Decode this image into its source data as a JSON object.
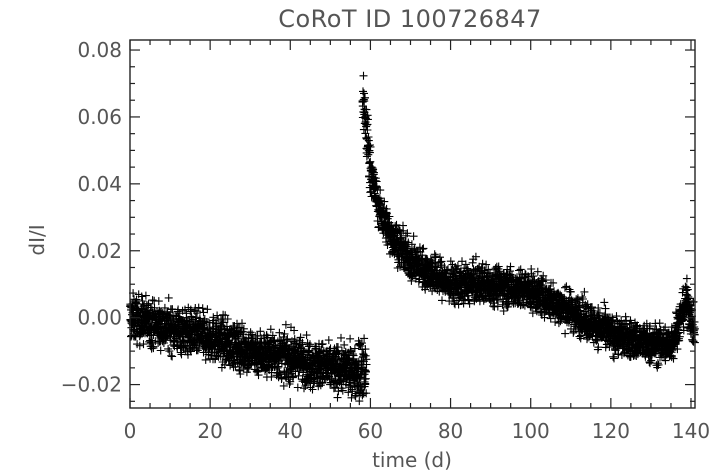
{
  "chart_data": {
    "type": "scatter",
    "title": "CoRoT ID 100726847",
    "xlabel": "time (d)",
    "ylabel": "dI/I",
    "xlim": [
      0,
      141
    ],
    "ylim": [
      -0.027,
      0.083
    ],
    "xticks": [
      0,
      20,
      40,
      60,
      80,
      100,
      120,
      140
    ],
    "yticks": [
      -0.02,
      0.0,
      0.02,
      0.04,
      0.06,
      0.08
    ],
    "xtick_labels": [
      "0",
      "20",
      "40",
      "60",
      "80",
      "100",
      "120",
      "140"
    ],
    "ytick_labels": [
      "−0.02",
      "0.00",
      "0.02",
      "0.04",
      "0.06",
      "0.08"
    ],
    "marker": "plus",
    "marker_color": "#000000",
    "grid": false,
    "series": [
      {
        "segments": [
          {
            "x_range": [
              0,
              59
            ],
            "trend": [
              [
                0,
                0.0
              ],
              [
                10,
                -0.003
              ],
              [
                20,
                -0.006
              ],
              [
                30,
                -0.01
              ],
              [
                40,
                -0.012
              ],
              [
                50,
                -0.015
              ],
              [
                57,
                -0.016
              ],
              [
                59,
                -0.017
              ]
            ],
            "scatter": 0.006
          },
          {
            "x_range": [
              58,
              141
            ],
            "trend": [
              [
                58,
                0.068
              ],
              [
                60,
                0.045
              ],
              [
                62,
                0.033
              ],
              [
                65,
                0.025
              ],
              [
                70,
                0.017
              ],
              [
                80,
                0.01
              ],
              [
                90,
                0.01
              ],
              [
                100,
                0.008
              ],
              [
                110,
                0.002
              ],
              [
                120,
                -0.005
              ],
              [
                130,
                -0.008
              ],
              [
                135,
                -0.008
              ],
              [
                139,
                0.005
              ],
              [
                141,
                -0.005
              ]
            ],
            "scatter": 0.005
          }
        ]
      }
    ]
  }
}
